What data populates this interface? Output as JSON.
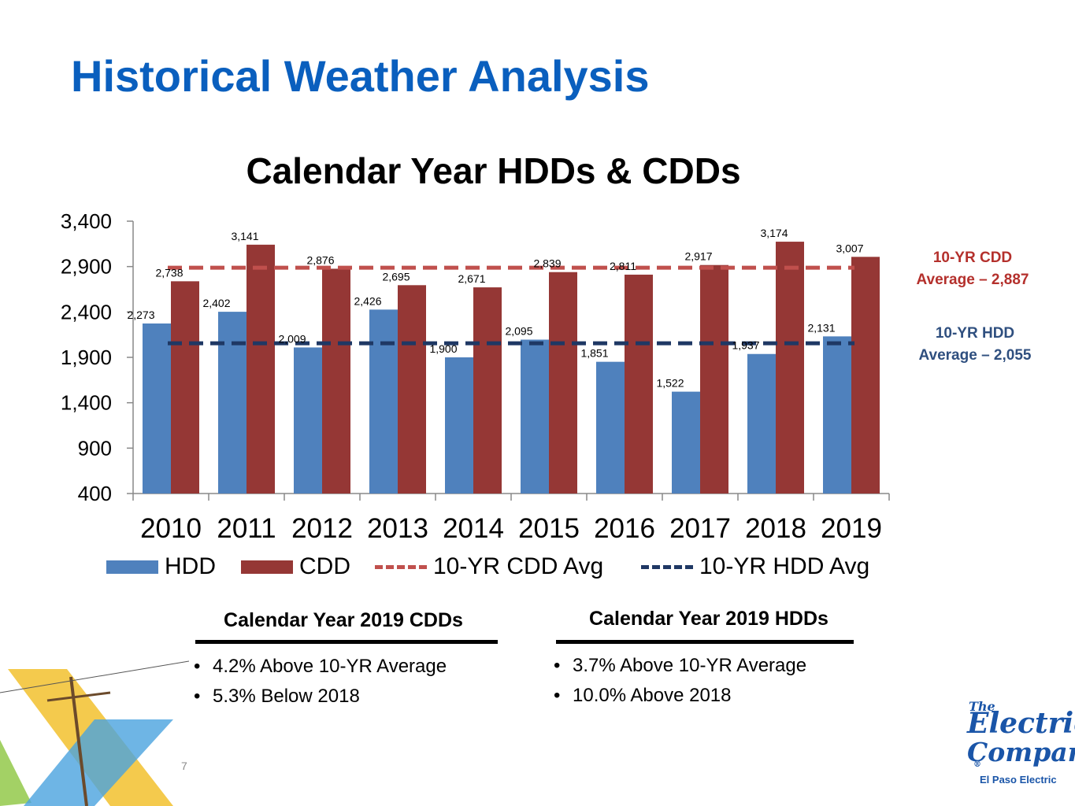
{
  "slide": {
    "title": "Historical Weather Analysis",
    "page_number": "7"
  },
  "colors": {
    "title_blue": "#0a5fbe",
    "hdd": "#4f81bd",
    "cdd": "#953735",
    "cdd_avg": "#c0504d",
    "hdd_avg": "#1f3864",
    "cdd_avg_text": "#b4302c",
    "hdd_avg_text": "#2f4f7f"
  },
  "chart_data": {
    "type": "bar",
    "title": "Calendar Year HDDs & CDDs",
    "categories": [
      "2010",
      "2011",
      "2012",
      "2013",
      "2014",
      "2015",
      "2016",
      "2017",
      "2018",
      "2019"
    ],
    "series": [
      {
        "name": "HDD",
        "values": [
          2273,
          2402,
          2009,
          2426,
          1900,
          2095,
          1851,
          1522,
          1937,
          2131
        ],
        "labels": [
          "2,273",
          "2,402",
          "2,009",
          "2,426",
          "1,900",
          "2,095",
          "1,851",
          "1,522",
          "1,937",
          "2,131"
        ]
      },
      {
        "name": "CDD",
        "values": [
          2738,
          3141,
          2876,
          2695,
          2671,
          2839,
          2811,
          2917,
          3174,
          3007
        ],
        "labels": [
          "2,738",
          "3,141",
          "2,876",
          "2,695",
          "2,671",
          "2,839",
          "2,811",
          "2,917",
          "3,174",
          "3,007"
        ]
      }
    ],
    "reference_lines": [
      {
        "name": "10-YR CDD Avg",
        "value": 2887
      },
      {
        "name": "10-YR HDD Avg",
        "value": 2055
      }
    ],
    "y_ticks": [
      400,
      900,
      1400,
      1900,
      2400,
      2900,
      3400
    ],
    "y_tick_labels": [
      "400",
      "900",
      "1,400",
      "1,900",
      "2,400",
      "2,900",
      "3,400"
    ],
    "ylim": [
      400,
      3400
    ],
    "xlabel": "",
    "ylabel": "",
    "grid": false,
    "legend": [
      "HDD",
      "CDD",
      "10-YR CDD Avg",
      "10-YR HDD Avg"
    ],
    "legend_position": "bottom",
    "annotations": {
      "cdd_avg_line1": "10-YR CDD",
      "cdd_avg_line2": "Average – 2,887",
      "hdd_avg_line1": "10-YR HDD",
      "hdd_avg_line2": "Average – 2,055"
    }
  },
  "summary": {
    "cdd": {
      "heading": "Calendar Year 2019 CDDs",
      "bullets": [
        "4.2% Above 10-YR Average",
        "5.3% Below 2018"
      ]
    },
    "hdd": {
      "heading": "Calendar Year 2019 HDDs",
      "bullets": [
        "3.7% Above 10-YR Average",
        "10.0% Above 2018"
      ]
    }
  },
  "logo": {
    "line1": "The",
    "line2": "Electric",
    "line3": "Company",
    "registered": "®",
    "subtitle": "El Paso Electric"
  }
}
